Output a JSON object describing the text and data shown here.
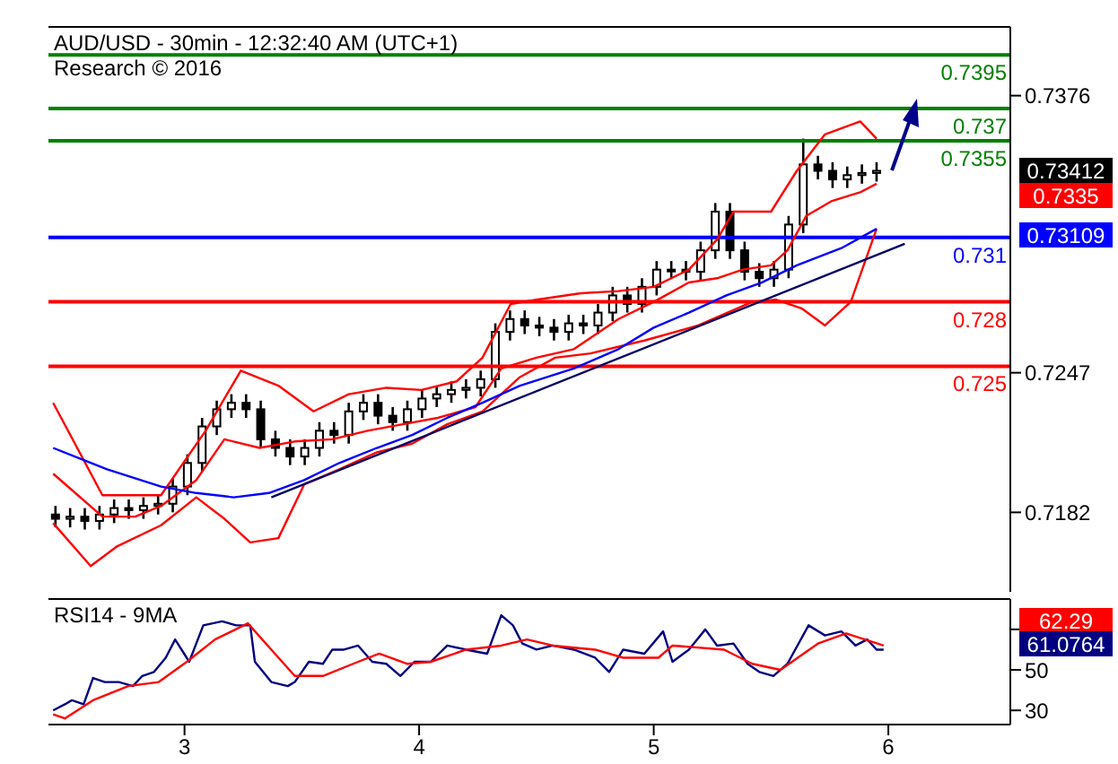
{
  "chart_data": [
    {
      "type": "candlestick",
      "title": "AUD/USD - 30min - 12:32:40 AM (UTC+1)",
      "subtitle": "Research © 2016",
      "color": "#000000",
      "x": [
        2.45,
        2.5125,
        2.575,
        2.6375,
        2.7,
        2.7625,
        2.825,
        2.8875,
        2.95,
        3.0125,
        3.075,
        3.1375,
        3.2,
        3.2625,
        3.325,
        3.3875,
        3.45,
        3.5125,
        3.575,
        3.6375,
        3.7,
        3.7625,
        3.825,
        3.8875,
        3.95,
        4.0125,
        4.075,
        4.1375,
        4.2,
        4.2625,
        4.325,
        4.3875,
        4.45,
        4.5125,
        4.575,
        4.6375,
        4.7,
        4.7625,
        4.825,
        4.8875,
        4.95,
        5.0125,
        5.075,
        5.1375,
        5.2,
        5.2625,
        5.325,
        5.3875,
        5.45,
        5.5125,
        5.575,
        5.6375,
        5.7,
        5.7625,
        5.825,
        5.8875,
        5.95
      ],
      "ohlc": [
        [
          0.7181,
          0.7185,
          0.7175,
          0.7179
        ],
        [
          0.7179,
          0.7184,
          0.7175,
          0.718
        ],
        [
          0.718,
          0.7184,
          0.7174,
          0.7178
        ],
        [
          0.7178,
          0.7185,
          0.7174,
          0.7181
        ],
        [
          0.7181,
          0.7188,
          0.7177,
          0.7184
        ],
        [
          0.7184,
          0.7188,
          0.7179,
          0.7183
        ],
        [
          0.7183,
          0.7189,
          0.7179,
          0.7185
        ],
        [
          0.7185,
          0.719,
          0.7181,
          0.7186
        ],
        [
          0.7186,
          0.7198,
          0.7182,
          0.7194
        ],
        [
          0.7194,
          0.7209,
          0.719,
          0.7205
        ],
        [
          0.7205,
          0.7226,
          0.7201,
          0.7222
        ],
        [
          0.7222,
          0.7234,
          0.7218,
          0.723
        ],
        [
          0.723,
          0.7237,
          0.7226,
          0.7233
        ],
        [
          0.7233,
          0.7237,
          0.7226,
          0.723
        ],
        [
          0.723,
          0.7234,
          0.7212,
          0.7216
        ],
        [
          0.7216,
          0.722,
          0.7208,
          0.7212
        ],
        [
          0.7212,
          0.7216,
          0.7204,
          0.7208
        ],
        [
          0.7208,
          0.7216,
          0.7204,
          0.7212
        ],
        [
          0.7212,
          0.7224,
          0.7208,
          0.722
        ],
        [
          0.722,
          0.7224,
          0.7214,
          0.7218
        ],
        [
          0.7218,
          0.7233,
          0.7214,
          0.7229
        ],
        [
          0.7229,
          0.7237,
          0.7225,
          0.7233
        ],
        [
          0.7233,
          0.7237,
          0.7223,
          0.7227
        ],
        [
          0.7227,
          0.7231,
          0.722,
          0.7224
        ],
        [
          0.7224,
          0.7234,
          0.722,
          0.723
        ],
        [
          0.723,
          0.7239,
          0.7226,
          0.7235
        ],
        [
          0.7235,
          0.7241,
          0.7231,
          0.7237
        ],
        [
          0.7237,
          0.7243,
          0.7233,
          0.7239
        ],
        [
          0.7239,
          0.7244,
          0.7235,
          0.724
        ],
        [
          0.724,
          0.7248,
          0.7236,
          0.7244
        ],
        [
          0.7244,
          0.727,
          0.724,
          0.7266
        ],
        [
          0.7266,
          0.7276,
          0.7262,
          0.7272
        ],
        [
          0.7272,
          0.7276,
          0.7265,
          0.7269
        ],
        [
          0.7269,
          0.7273,
          0.7264,
          0.7268
        ],
        [
          0.7268,
          0.7272,
          0.7262,
          0.7266
        ],
        [
          0.7266,
          0.7274,
          0.7262,
          0.727
        ],
        [
          0.727,
          0.7274,
          0.7265,
          0.7269
        ],
        [
          0.7269,
          0.7279,
          0.7265,
          0.7275
        ],
        [
          0.7275,
          0.7287,
          0.7271,
          0.7283
        ],
        [
          0.7283,
          0.7287,
          0.7275,
          0.7279
        ],
        [
          0.7279,
          0.7291,
          0.7275,
          0.7287
        ],
        [
          0.7287,
          0.7299,
          0.7283,
          0.7295
        ],
        [
          0.7295,
          0.7299,
          0.7291,
          0.7295
        ],
        [
          0.7295,
          0.7299,
          0.729,
          0.7294
        ],
        [
          0.7294,
          0.7308,
          0.729,
          0.7304
        ],
        [
          0.7304,
          0.7326,
          0.73,
          0.7322
        ],
        [
          0.7322,
          0.7326,
          0.73,
          0.7304
        ],
        [
          0.7304,
          0.7308,
          0.729,
          0.7294
        ],
        [
          0.7294,
          0.7298,
          0.7287,
          0.7291
        ],
        [
          0.7291,
          0.7299,
          0.7287,
          0.7295
        ],
        [
          0.7295,
          0.732,
          0.7291,
          0.7316
        ],
        [
          0.7316,
          0.7356,
          0.7312,
          0.7344
        ],
        [
          0.7344,
          0.7348,
          0.7337,
          0.7341
        ],
        [
          0.7341,
          0.7345,
          0.7333,
          0.7337
        ],
        [
          0.7337,
          0.7343,
          0.7333,
          0.7339
        ],
        [
          0.7339,
          0.7344,
          0.7335,
          0.734
        ],
        [
          0.734,
          0.7345,
          0.7336,
          0.7341
        ]
      ],
      "series": [
        {
          "type": "line",
          "color": "#ff0000",
          "x": [
            2.44,
            2.65,
            2.9,
            3.09,
            3.24,
            3.4,
            3.55,
            3.7,
            3.86,
            4.01,
            4.16,
            4.27,
            4.39,
            4.5,
            4.69,
            4.85,
            5.0,
            5.15,
            5.27,
            5.34,
            5.5,
            5.61,
            5.73,
            5.88,
            5.95
          ],
          "values": [
            0.7233,
            0.719,
            0.719,
            0.722,
            0.7248,
            0.7241,
            0.7229,
            0.7237,
            0.724,
            0.7239,
            0.7243,
            0.7254,
            0.7279,
            0.7281,
            0.7284,
            0.7285,
            0.7287,
            0.7295,
            0.7309,
            0.7322,
            0.7322,
            0.7341,
            0.7358,
            0.7364,
            0.7356
          ]
        },
        {
          "type": "line",
          "color": "#ff0000",
          "x": [
            2.44,
            2.65,
            2.79,
            2.9,
            3.05,
            3.17,
            3.32,
            3.47,
            3.63,
            3.78,
            3.93,
            4.08,
            4.24,
            4.35,
            4.5,
            4.66,
            4.85,
            5.0,
            5.15,
            5.27,
            5.38,
            5.5,
            5.57,
            5.65,
            5.76,
            5.88,
            5.95
          ],
          "values": [
            0.72,
            0.718,
            0.718,
            0.7185,
            0.7197,
            0.7216,
            0.7212,
            0.7215,
            0.7216,
            0.722,
            0.7223,
            0.7226,
            0.7231,
            0.7249,
            0.7254,
            0.7258,
            0.7272,
            0.728,
            0.7289,
            0.7291,
            0.7295,
            0.7297,
            0.7304,
            0.732,
            0.7327,
            0.7331,
            0.7335
          ]
        },
        {
          "type": "line",
          "color": "#ff0000",
          "x": [
            2.44,
            2.6,
            2.71,
            2.9,
            3.05,
            3.17,
            3.28,
            3.4,
            3.51,
            3.66,
            3.82,
            3.97,
            4.12,
            4.27,
            4.43,
            4.58,
            4.73,
            4.96,
            5.19,
            5.42,
            5.52,
            5.63,
            5.73,
            5.84,
            5.95
          ],
          "values": [
            0.7177,
            0.7157,
            0.7166,
            0.7176,
            0.7189,
            0.7179,
            0.7168,
            0.717,
            0.7195,
            0.7202,
            0.721,
            0.7214,
            0.7223,
            0.7229,
            0.7245,
            0.7254,
            0.7256,
            0.7262,
            0.7269,
            0.728,
            0.7281,
            0.7277,
            0.7269,
            0.728,
            0.7314
          ]
        },
        {
          "type": "line",
          "color": "#0000ff",
          "x": [
            2.44,
            2.67,
            2.9,
            3.05,
            3.21,
            3.36,
            3.51,
            3.66,
            3.82,
            3.97,
            4.12,
            4.27,
            4.43,
            4.66,
            4.85,
            5.0,
            5.15,
            5.31,
            5.46,
            5.61,
            5.8,
            5.95
          ],
          "values": [
            0.7212,
            0.7202,
            0.7194,
            0.7191,
            0.7189,
            0.7191,
            0.7197,
            0.7205,
            0.7212,
            0.7218,
            0.7226,
            0.7233,
            0.7241,
            0.7249,
            0.7258,
            0.7268,
            0.7275,
            0.7283,
            0.7289,
            0.7297,
            0.7305,
            0.7314
          ]
        },
        {
          "type": "line",
          "color": "#000066",
          "x": [
            3.37,
            6.07
          ],
          "values": [
            0.7189,
            0.7307
          ]
        }
      ],
      "ref_lines": [
        {
          "axis": "y",
          "value": 0.7395,
          "label": "0.7395",
          "color": "#008000"
        },
        {
          "axis": "y",
          "value": 0.737,
          "label": "0.737",
          "color": "#008000"
        },
        {
          "axis": "y",
          "value": 0.7355,
          "label": "0.7355",
          "color": "#008000"
        },
        {
          "axis": "y",
          "value": 0.731,
          "label": "0.731",
          "color": "#0000ff"
        },
        {
          "axis": "y",
          "value": 0.728,
          "label": "0.728",
          "color": "#ff0000"
        },
        {
          "axis": "y",
          "value": 0.725,
          "label": "0.725",
          "color": "#ff0000"
        }
      ],
      "annotations": [
        "0.73412",
        "0.7335",
        "0.73109"
      ],
      "xlim": [
        2.42,
        6.52
      ],
      "xticks": [
        3,
        4,
        5,
        6
      ],
      "ylim": [
        0.7145,
        0.7408
      ],
      "yticks": [
        0.7376,
        0.7247,
        0.7182
      ],
      "tick_labels": "y"
    },
    {
      "type": "line",
      "title": "RSI14 - 9MA",
      "series": [
        {
          "color": "#000080",
          "x": [
            2.44,
            2.49,
            2.52,
            2.57,
            2.61,
            2.66,
            2.72,
            2.78,
            2.82,
            2.87,
            2.92,
            2.96,
            3.02,
            3.08,
            3.16,
            3.22,
            3.28,
            3.3,
            3.37,
            3.44,
            3.47,
            3.53,
            3.59,
            3.63,
            3.68,
            3.74,
            3.8,
            3.86,
            3.92,
            3.98,
            4.05,
            4.12,
            4.2,
            4.29,
            4.35,
            4.4,
            4.44,
            4.5,
            4.57,
            4.66,
            4.75,
            4.81,
            4.87,
            4.96,
            5.04,
            5.08,
            5.15,
            5.22,
            5.27,
            5.34,
            5.4,
            5.45,
            5.51,
            5.57,
            5.66,
            5.73,
            5.8,
            5.86,
            5.91,
            5.95,
            5.98
          ],
          "values": [
            30,
            33,
            35,
            33,
            46,
            44,
            44,
            42,
            47,
            49,
            56,
            65,
            54,
            72,
            74,
            72,
            72,
            54,
            44,
            42,
            44,
            54,
            53,
            60,
            60,
            62,
            54,
            53,
            47,
            54,
            54,
            62,
            60,
            58,
            77,
            72,
            63,
            60,
            62,
            60,
            56,
            49,
            60,
            58,
            69,
            54,
            60,
            70,
            62,
            63,
            53,
            49,
            47,
            53,
            72,
            67,
            69,
            62,
            65,
            60,
            60
          ]
        },
        {
          "color": "#ff0000",
          "x": [
            2.44,
            2.49,
            2.61,
            2.76,
            2.89,
            3.01,
            3.13,
            3.27,
            3.37,
            3.47,
            3.59,
            3.74,
            3.83,
            3.95,
            4.05,
            4.2,
            4.35,
            4.46,
            4.57,
            4.75,
            4.87,
            5.02,
            5.08,
            5.3,
            5.42,
            5.54,
            5.7,
            5.82,
            5.98
          ],
          "values": [
            28,
            26,
            35,
            42,
            44,
            54,
            65,
            73,
            60,
            47,
            47,
            54,
            58,
            53,
            54,
            60,
            62,
            65,
            62,
            60,
            56,
            56,
            62,
            60,
            53,
            50,
            63,
            68,
            62
          ]
        }
      ],
      "annotations": [
        "62.29",
        "61.0764"
      ],
      "xlim": [
        2.42,
        6.52
      ],
      "xticks": [
        3,
        4,
        5,
        6
      ],
      "ylim": [
        23,
        85
      ],
      "yticks": [
        30,
        50,
        {
          "value": 70,
          "label": null
        }
      ]
    }
  ]
}
